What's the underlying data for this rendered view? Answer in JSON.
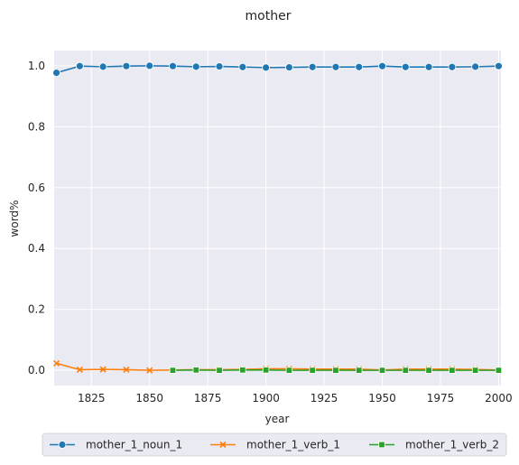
{
  "chart_data": {
    "type": "line",
    "title": "mother",
    "xlabel": "year",
    "ylabel": "word%",
    "xlim": [
      1809,
      2001
    ],
    "ylim": [
      -0.05,
      1.05
    ],
    "x_ticks": [
      1825,
      1850,
      1875,
      1900,
      1925,
      1950,
      1975,
      2000
    ],
    "y_ticks": [
      0.0,
      0.2,
      0.4,
      0.6,
      0.8,
      1.0
    ],
    "x_tick_labels": [
      "1825",
      "1850",
      "1875",
      "1900",
      "1925",
      "1950",
      "1975",
      "2000"
    ],
    "y_tick_labels": [
      "0.0",
      "0.2",
      "0.4",
      "0.6",
      "0.8",
      "1.0"
    ],
    "grid": true,
    "legend_position": "bottom",
    "series": [
      {
        "name": "mother_1_noun_1",
        "color": "#1f77b4",
        "marker": "circle",
        "x": [
          1810,
          1820,
          1830,
          1840,
          1850,
          1860,
          1870,
          1880,
          1890,
          1900,
          1910,
          1920,
          1930,
          1940,
          1950,
          1960,
          1970,
          1980,
          1990,
          2000
        ],
        "values": [
          0.977,
          0.999,
          0.997,
          0.999,
          1.0,
          0.999,
          0.997,
          0.998,
          0.996,
          0.994,
          0.995,
          0.996,
          0.996,
          0.996,
          0.999,
          0.996,
          0.996,
          0.996,
          0.997,
          0.999
        ]
      },
      {
        "name": "mother_1_verb_1",
        "color": "#ff7f0e",
        "marker": "x",
        "x": [
          1810,
          1820,
          1830,
          1840,
          1850,
          1860,
          1870,
          1880,
          1890,
          1900,
          1910,
          1920,
          1930,
          1940,
          1950,
          1960,
          1970,
          1980,
          1990,
          2000
        ],
        "values": [
          0.023,
          0.002,
          0.003,
          0.002,
          0.0,
          0.001,
          0.002,
          0.002,
          0.003,
          0.005,
          0.005,
          0.004,
          0.004,
          0.004,
          0.001,
          0.004,
          0.004,
          0.004,
          0.003,
          0.001
        ]
      },
      {
        "name": "mother_1_verb_2",
        "color": "#2ca02c",
        "marker": "square",
        "x": [
          1860,
          1870,
          1880,
          1890,
          1900,
          1910,
          1920,
          1930,
          1940,
          1950,
          1960,
          1970,
          1980,
          1990,
          2000
        ],
        "values": [
          0.0,
          0.001,
          0.0,
          0.001,
          0.001,
          0.0,
          0.0,
          0.0,
          0.0,
          0.0,
          0.0,
          0.0,
          0.0,
          0.0,
          0.0
        ]
      }
    ]
  }
}
